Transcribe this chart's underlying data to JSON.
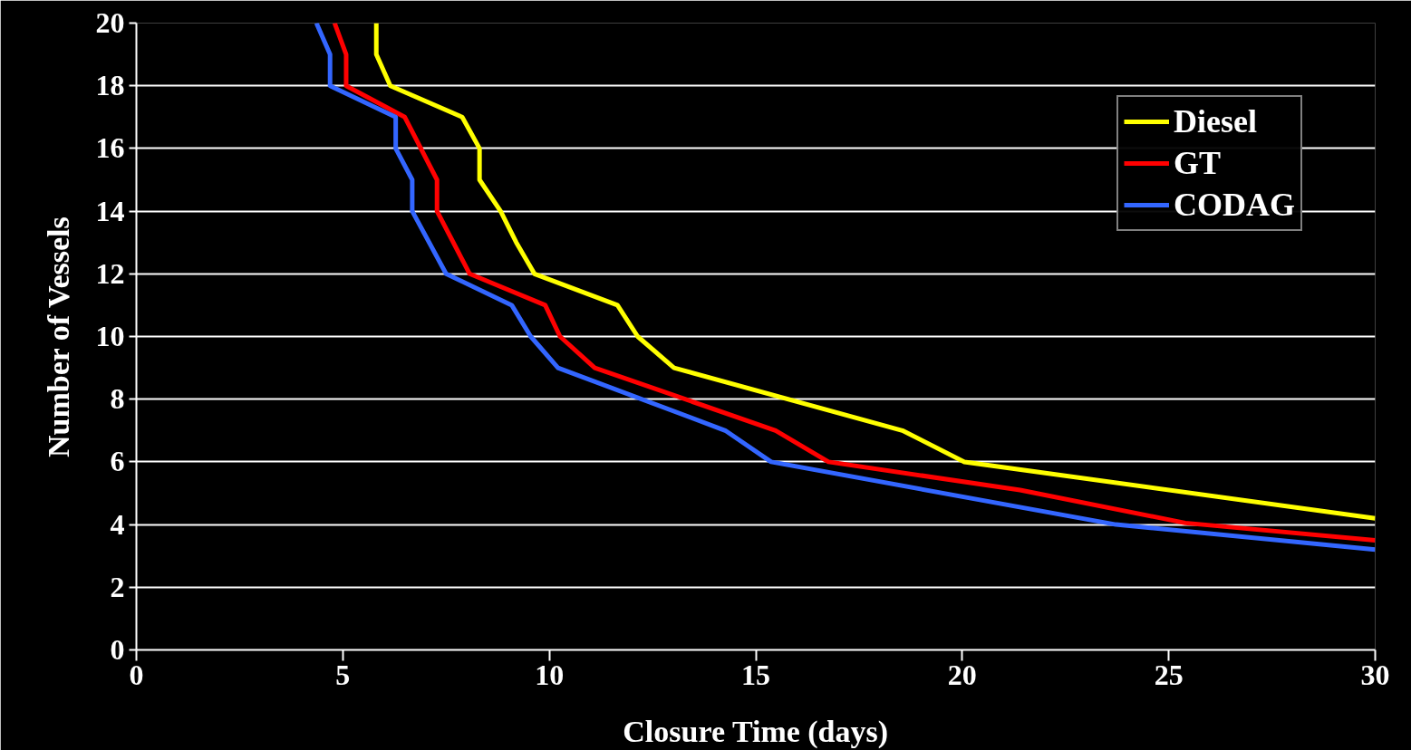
{
  "chart_data": {
    "type": "line",
    "xlabel": "Closure Time (days)",
    "ylabel": "Number of Vessels",
    "xlim": [
      0,
      30
    ],
    "ylim": [
      0,
      20
    ],
    "xticks": [
      0,
      5,
      10,
      15,
      20,
      25,
      30
    ],
    "yticks": [
      0,
      2,
      4,
      6,
      8,
      10,
      12,
      14,
      16,
      18,
      20
    ],
    "grid": "y",
    "legend": "top right",
    "line_style": "solid",
    "series": [
      {
        "name": "Diesel",
        "color": "#ffff00",
        "x": [
          5.81,
          5.81,
          6.15,
          7.89,
          8.31,
          8.31,
          8.82,
          9.2,
          9.64,
          11.65,
          12.14,
          13.02,
          18.55,
          20.05,
          30
        ],
        "values": [
          20,
          19,
          18,
          17,
          16,
          15,
          14,
          13,
          12,
          11,
          10,
          9,
          7,
          6,
          4.2
        ]
      },
      {
        "name": "GT",
        "color": "#ff0000",
        "x": [
          4.8,
          5.08,
          5.08,
          6.5,
          7.28,
          7.28,
          8.07,
          9.9,
          10.26,
          11.1,
          15.48,
          16.76,
          21.4,
          25.4,
          30
        ],
        "values": [
          20,
          19,
          18,
          17,
          15,
          14,
          12,
          11,
          10,
          9,
          7,
          6,
          5.1,
          4.05,
          3.5
        ]
      },
      {
        "name": "CODAG",
        "color": "#3366ff",
        "x": [
          4.36,
          4.69,
          4.69,
          6.28,
          6.28,
          6.68,
          6.68,
          7.5,
          9.09,
          9.55,
          10.21,
          14.26,
          15.37,
          23.72,
          30
        ],
        "values": [
          20,
          19,
          18,
          17,
          16,
          15,
          14,
          12,
          11,
          10,
          9,
          7,
          6,
          4.0,
          3.2
        ]
      }
    ]
  }
}
